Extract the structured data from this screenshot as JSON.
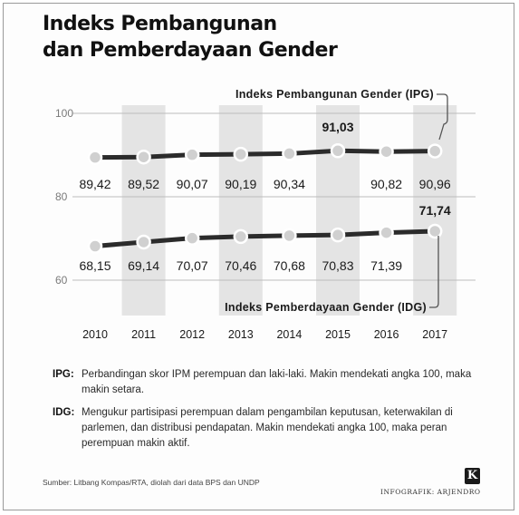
{
  "title": {
    "line1": "Indeks Pembangunan",
    "line2": "dan Pemberdayaan Gender"
  },
  "colors": {
    "line": "#2b2b2b",
    "band": "#e4e4e4",
    "grid": "#bdbdbd",
    "marker_fill": "#d0d0d0",
    "marker_stroke": "#ffffff"
  },
  "chart_data": {
    "type": "line",
    "categories": [
      "2010",
      "2011",
      "2012",
      "2013",
      "2014",
      "2015",
      "2016",
      "2017"
    ],
    "series": [
      {
        "name": "Indeks Pembangunan Gender (IPG)",
        "values": [
          89.42,
          89.52,
          90.07,
          90.19,
          90.34,
          91.03,
          90.82,
          90.96
        ],
        "labels": [
          "89,42",
          "89,52",
          "90,07",
          "90,19",
          "90,34",
          "91,03",
          "90,82",
          "90,96"
        ]
      },
      {
        "name": "Indeks Pemberdayaan Gender (IDG)",
        "values": [
          68.15,
          69.14,
          70.07,
          70.46,
          70.68,
          70.83,
          71.39,
          71.74
        ],
        "labels": [
          "68,15",
          "69,14",
          "70,07",
          "70,46",
          "70,68",
          "70,83",
          "71,39",
          "71,74"
        ]
      }
    ],
    "yticks": [
      "100",
      "80",
      "60"
    ],
    "ylim": [
      60,
      100
    ],
    "grid": true,
    "shaded_columns": [
      "2011",
      "2013",
      "2015",
      "2017"
    ],
    "legend": "inline labels"
  },
  "notes": [
    {
      "term": "IPG",
      "separator": ":",
      "text": "Perbandingan skor IPM perempuan dan laki-laki. Makin mendekati angka 100, maka makin setara."
    },
    {
      "term": "IDG",
      "separator": ":",
      "text": "Mengukur partisipasi perempuan dalam pengambilan keputusan, keterwakilan di parlemen, dan distribusi pendapatan. Makin mendekati angka 100, maka peran perempuan makin aktif."
    }
  ],
  "source": "Sumber: Litbang Kompas/RTA, diolah dari data BPS dan UNDP",
  "brand": {
    "logo": "K",
    "credit": "INFOGRAFIK: ARJENDRO"
  }
}
